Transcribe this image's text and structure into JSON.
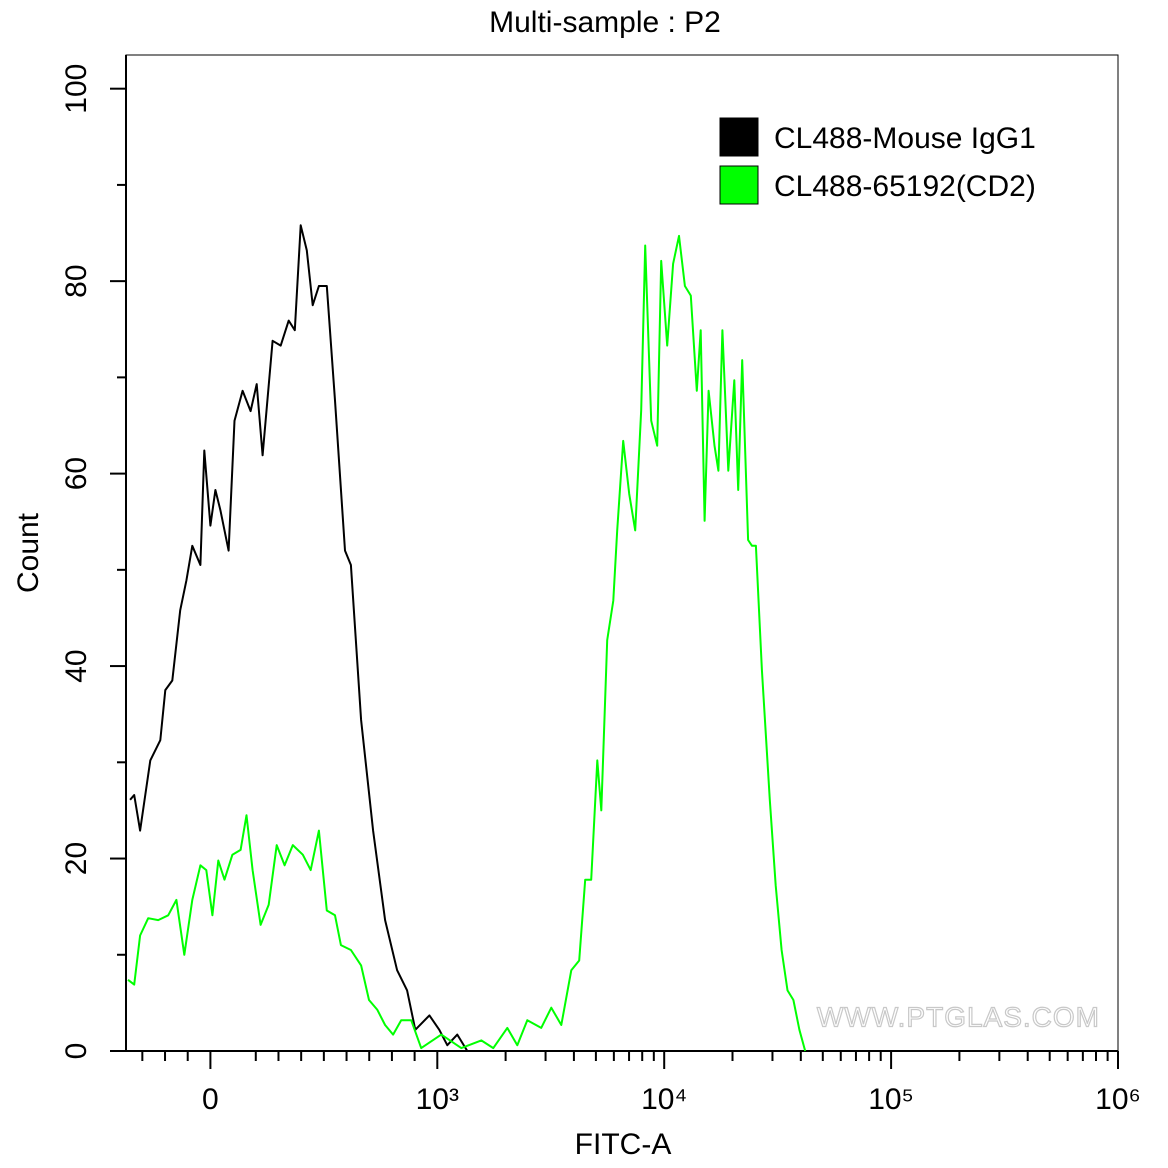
{
  "chart_data": {
    "type": "line",
    "title": "Multi-sample : P2",
    "xlabel": "FITC-A",
    "ylabel": "Count",
    "watermark": "WWW.PTGLAS.COM",
    "xlim": [
      -372,
      1000000
    ],
    "xticks": [
      0,
      {
        "value": 1000,
        "label": "10³"
      },
      {
        "value": 10000,
        "label": "10⁴"
      },
      {
        "value": 100000,
        "label": "10⁵"
      },
      {
        "value": 1000000,
        "label": "10⁶"
      }
    ],
    "xminorticks": [
      -300,
      -200,
      -100,
      200,
      300,
      400,
      500,
      600,
      700,
      800,
      900,
      2000,
      3000,
      4000,
      5000,
      6000,
      7000,
      8000,
      9000,
      20000,
      30000,
      40000,
      50000,
      60000,
      70000,
      80000,
      90000,
      200000,
      300000,
      400000,
      500000,
      600000,
      700000,
      800000,
      900000
    ],
    "ylim": [
      0,
      103.5
    ],
    "yticks": [
      0,
      20,
      40,
      60,
      80,
      100
    ],
    "yminorticks": [
      10,
      30,
      50,
      70,
      90
    ],
    "legend": "top-right",
    "series": [
      {
        "name": "CL488-Mouse IgG1",
        "color": "#000000",
        "x": [
          -354,
          -336,
          -310,
          -265,
          -221,
          -199,
          -168,
          -133,
          -106,
          -80,
          -44,
          -27,
          0,
          22,
          44,
          80,
          106,
          142,
          177,
          204,
          230,
          274,
          310,
          345,
          372,
          398,
          425,
          451,
          478,
          513,
          549,
          593,
          619,
          664,
          717,
          770,
          823,
          867,
          903,
          965,
          1020,
          1107,
          1225,
          1356
        ],
        "values": [
          26.1,
          26.6,
          22.9,
          30.2,
          32.3,
          37.5,
          38.5,
          45.8,
          48.9,
          52.5,
          50.5,
          62.4,
          54.6,
          58.3,
          56.2,
          52.0,
          65.5,
          68.6,
          66.5,
          69.3,
          61.9,
          73.8,
          73.3,
          75.9,
          74.9,
          85.8,
          83.2,
          77.5,
          79.5,
          79.5,
          67.6,
          52.0,
          50.5,
          34.4,
          22.9,
          13.6,
          8.4,
          6.3,
          2.2,
          3.7,
          2.2,
          0.6,
          1.7,
          0
        ]
      },
      {
        "name": "CL488-65192(CD2)",
        "color": "#00ff00",
        "x": [
          -363,
          -336,
          -310,
          -274,
          -230,
          -186,
          -150,
          -115,
          -80,
          -44,
          -18,
          9,
          35,
          62,
          97,
          133,
          159,
          186,
          221,
          257,
          292,
          327,
          363,
          407,
          442,
          478,
          513,
          549,
          575,
          619,
          664,
          699,
          735,
          770,
          805,
          841,
          885,
          929,
          1041,
          1276,
          1563,
          1765,
          2034,
          2251,
          2492,
          2871,
          3179,
          3518,
          3894,
          4222,
          4487,
          4769,
          5069,
          5279,
          5610,
          5963,
          6209,
          6599,
          7013,
          7453,
          7922,
          8250,
          8768,
          9316,
          9700,
          10304,
          10943,
          11622,
          12340,
          13100,
          13914,
          14482,
          15074,
          15690,
          16660,
          17340,
          18050,
          19170,
          20360,
          21190,
          22060,
          23420,
          24380,
          25370,
          26950,
          29200,
          30990,
          32920,
          34960,
          37120,
          39420,
          41840
        ],
        "values": [
          7.4,
          6.9,
          12.0,
          13.8,
          13.6,
          14.1,
          15.7,
          10.0,
          15.7,
          19.3,
          18.8,
          14.1,
          19.8,
          17.8,
          20.4,
          20.9,
          24.5,
          18.8,
          13.1,
          15.2,
          21.4,
          19.3,
          21.4,
          20.4,
          18.8,
          22.9,
          14.6,
          14.1,
          11.0,
          10.5,
          8.9,
          5.3,
          4.3,
          2.7,
          1.7,
          3.2,
          3.2,
          0.3,
          1.7,
          0.3,
          1.1,
          0.3,
          2.4,
          0.6,
          3.2,
          2.4,
          4.5,
          2.7,
          8.4,
          9.4,
          17.8,
          17.8,
          30.2,
          25.0,
          42.7,
          46.8,
          54.1,
          63.4,
          57.9,
          54.1,
          66.6,
          83.7,
          65.5,
          62.9,
          82.1,
          73.3,
          81.8,
          84.7,
          79.5,
          78.5,
          68.6,
          74.9,
          55.1,
          68.6,
          62.9,
          60.3,
          74.9,
          60.3,
          69.7,
          58.3,
          71.8,
          53.1,
          52.5,
          52.5,
          39.6,
          26.1,
          17.2,
          10.5,
          6.3,
          5.3,
          2.2,
          0
        ]
      }
    ]
  }
}
